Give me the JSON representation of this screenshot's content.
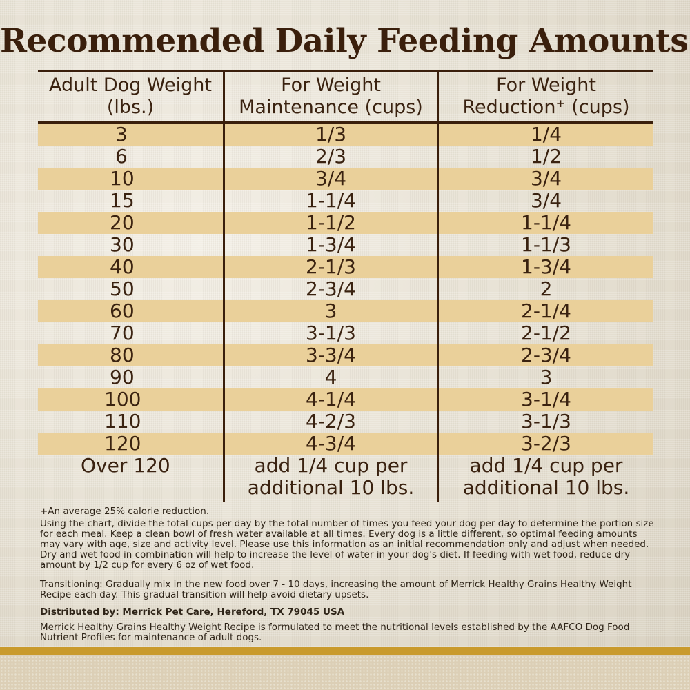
{
  "title": "Recommended Daily Feeding Amounts:",
  "headers": {
    "col1": [
      "Adult Dog Weight",
      "(lbs.)"
    ],
    "col2": [
      "For Weight",
      "Maintenance (cups)"
    ],
    "col3": [
      "For Weight",
      "Reduction⁺ (cups)"
    ]
  },
  "rows": [
    {
      "weight": "3",
      "maintenance": "1/3",
      "reduction": "1/4"
    },
    {
      "weight": "6",
      "maintenance": "2/3",
      "reduction": "1/2"
    },
    {
      "weight": "10",
      "maintenance": "3/4",
      "reduction": "3/4"
    },
    {
      "weight": "15",
      "maintenance": "1-1/4",
      "reduction": "3/4"
    },
    {
      "weight": "20",
      "maintenance": "1-1/2",
      "reduction": "1-1/4"
    },
    {
      "weight": "30",
      "maintenance": "1-3/4",
      "reduction": "1-1/3"
    },
    {
      "weight": "40",
      "maintenance": "2-1/3",
      "reduction": "1-3/4"
    },
    {
      "weight": "50",
      "maintenance": "2-3/4",
      "reduction": "2"
    },
    {
      "weight": "60",
      "maintenance": "3",
      "reduction": "2-1/4"
    },
    {
      "weight": "70",
      "maintenance": "3-1/3",
      "reduction": "2-1/2"
    },
    {
      "weight": "80",
      "maintenance": "3-3/4",
      "reduction": "2-3/4"
    },
    {
      "weight": "90",
      "maintenance": "4",
      "reduction": "3"
    },
    {
      "weight": "100",
      "maintenance": "4-1/4",
      "reduction": "3-1/4"
    },
    {
      "weight": "110",
      "maintenance": "4-2/3",
      "reduction": "3-1/3"
    },
    {
      "weight": "120",
      "maintenance": "4-3/4",
      "reduction": "3-2/3"
    }
  ],
  "last_row": {
    "weight": "Over 120",
    "maintenance": "add 1/4 cup per additional 10 lbs.",
    "reduction": "add 1/4 cup per additional 10 lbs."
  },
  "footnote": "+An average 25% calorie reduction.",
  "instructions": "Using the chart, divide the total cups per day by the total number of times you feed your dog per day to determine the portion size for each meal. Keep a clean bowl of fresh water available at all times. Every dog is a little different, so optimal feeding amounts may vary with age, size and activity level. Please use this information as an initial recommendation only and adjust when needed. Dry and wet food in combination will help to increase the level of water in your dog's diet. If feeding with wet food, reduce dry amount by 1/2 cup for every 6 oz of wet food.",
  "transitioning": "Transitioning: Gradually mix in the new food over 7 - 10 days, increasing the amount of Merrick Healthy Grains Healthy Weight Recipe each day. This gradual transition will help avoid dietary upsets.",
  "distributed_by": "Distributed by: Merrick Pet Care, Hereford, TX 79045 USA",
  "aafco": "Merrick Healthy Grains Healthy Weight Recipe is formulated to meet the nutritional levels established by the AAFCO Dog Food Nutrient Profiles for maintenance of adult dogs.",
  "colors": {
    "text": "#3a2210",
    "band": "#ead09a",
    "accent_bar": "#c99a2c"
  }
}
